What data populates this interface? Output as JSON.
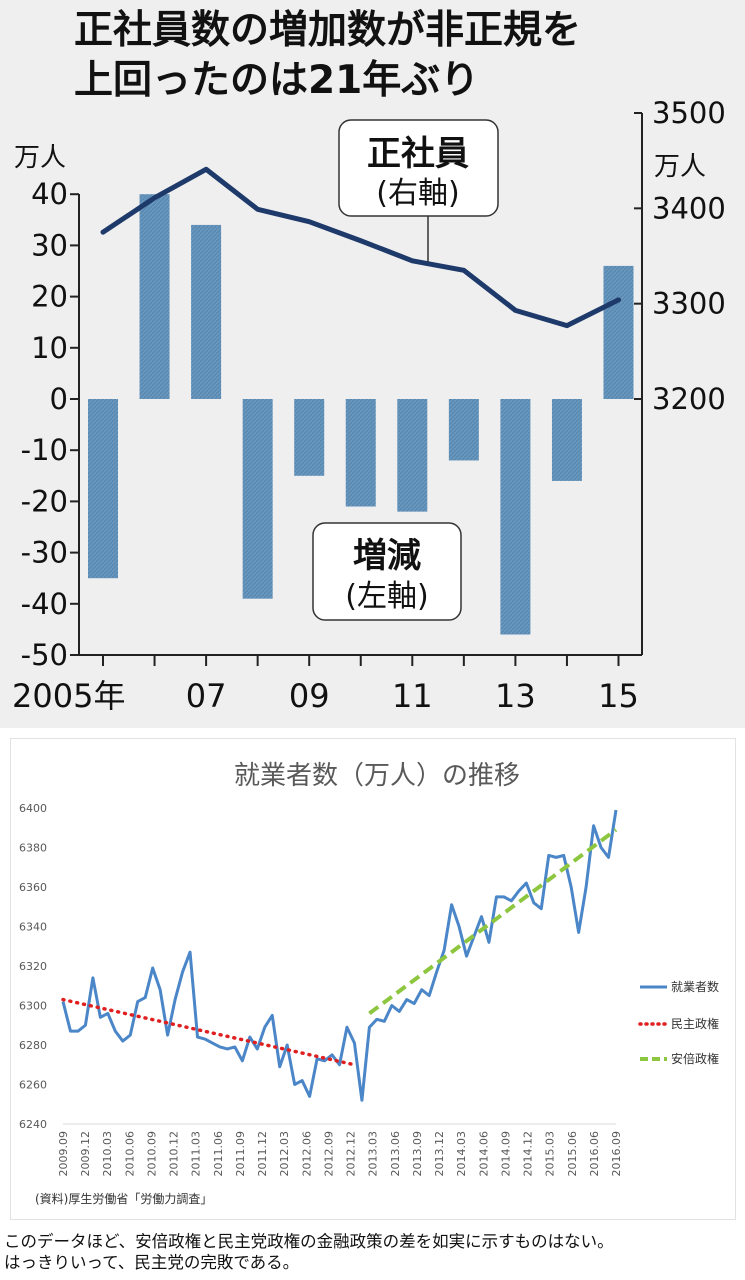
{
  "chart_data": [
    {
      "type": "bar",
      "title": "正社員数の増加数が非正規を上回ったのは21年ぶり",
      "title_lines": [
        "正社員数の増加数が非正規を",
        "上回ったのは21年ぶり"
      ],
      "x": [
        2005,
        2006,
        2007,
        2008,
        2009,
        2010,
        2011,
        2012,
        2013,
        2014,
        2015
      ],
      "x_tick_labels": [
        "2005年",
        "07",
        "09",
        "11",
        "13",
        "15"
      ],
      "left_axis_unit": "万人",
      "right_axis_unit": "万人",
      "ylim_left": [
        -50,
        40
      ],
      "ylim_right": [
        3200,
        3500
      ],
      "yticks_left": [
        40,
        30,
        20,
        10,
        0,
        -10,
        -20,
        -30,
        -40,
        -50
      ],
      "yticks_right": [
        3500,
        3400,
        3300,
        3200
      ],
      "colors": {
        "bar": "#5b8bb3",
        "line": "#1e3a6a",
        "background": "#efefef"
      },
      "series": [
        {
          "name": "増減",
          "sub": "(左軸)",
          "type": "bar",
          "axis": "left",
          "values": [
            -35,
            40,
            34,
            -39,
            -15,
            -21,
            -22,
            -12,
            -46,
            -16,
            26
          ]
        },
        {
          "name": "正社員",
          "sub": "(右軸)",
          "type": "line",
          "axis": "right",
          "values": [
            3375,
            3411,
            3441,
            3399,
            3386,
            3366,
            3345,
            3335,
            3293,
            3277,
            3304
          ]
        }
      ]
    },
    {
      "type": "line",
      "title": "就業者数（万人）の推移",
      "ylim": [
        6240,
        6400
      ],
      "yticks": [
        6400,
        6380,
        6360,
        6340,
        6320,
        6300,
        6280,
        6260,
        6240
      ],
      "x_tick_labels": [
        "2009.09",
        "2009.12",
        "2010.03",
        "2010.06",
        "2010.09",
        "2010.12",
        "2011.03",
        "2011.06",
        "2011.09",
        "2011.12",
        "2012.03",
        "2012.06",
        "2012.09",
        "2012.12",
        "2013.03",
        "2013.06",
        "2013.09",
        "2013.12",
        "2014.03",
        "2014.06",
        "2014.09",
        "2014.12",
        "2015.03",
        "2015.06",
        "2016.06",
        "2016.09"
      ],
      "source": "(資料)厚生労働省「労働力調査」",
      "legend_position": "right",
      "series": [
        {
          "name": "就業者数",
          "style": "solid",
          "color": "#4a86c8",
          "values": [
            6302,
            6287,
            6287,
            6290,
            6314,
            6294,
            6296,
            6287,
            6282,
            6285,
            6302,
            6304,
            6319,
            6308,
            6285,
            6303,
            6317,
            6327,
            6284,
            6283,
            6281,
            6279,
            6278,
            6279,
            6272,
            6284,
            6278,
            6289,
            6295,
            6269,
            6280,
            6260,
            6262,
            6254,
            6273,
            6272,
            6275,
            6270,
            6289,
            6281,
            6252,
            6289,
            6293,
            6292,
            6300,
            6297,
            6303,
            6301,
            6308,
            6305,
            6317,
            6328,
            6351,
            6340,
            6325,
            6335,
            6345,
            6332,
            6355,
            6355,
            6353,
            6358,
            6362,
            6352,
            6349,
            6376,
            6375,
            6376,
            6360,
            6337,
            6360,
            6391,
            6380,
            6375,
            6399
          ]
        },
        {
          "name": "民主政権",
          "style": "dotted",
          "color": "#e02020",
          "start": 6303,
          "end": 6270
        },
        {
          "name": "安倍政権",
          "style": "dashed",
          "color": "#8dc63f",
          "start": 6296,
          "end": 6389
        }
      ]
    }
  ],
  "caption": {
    "line1": "このデータほど、安倍政権と民主党政権の金融政策の差を如実に示すものはない。",
    "line2": "はっきりいって、民主党の完敗である。"
  }
}
